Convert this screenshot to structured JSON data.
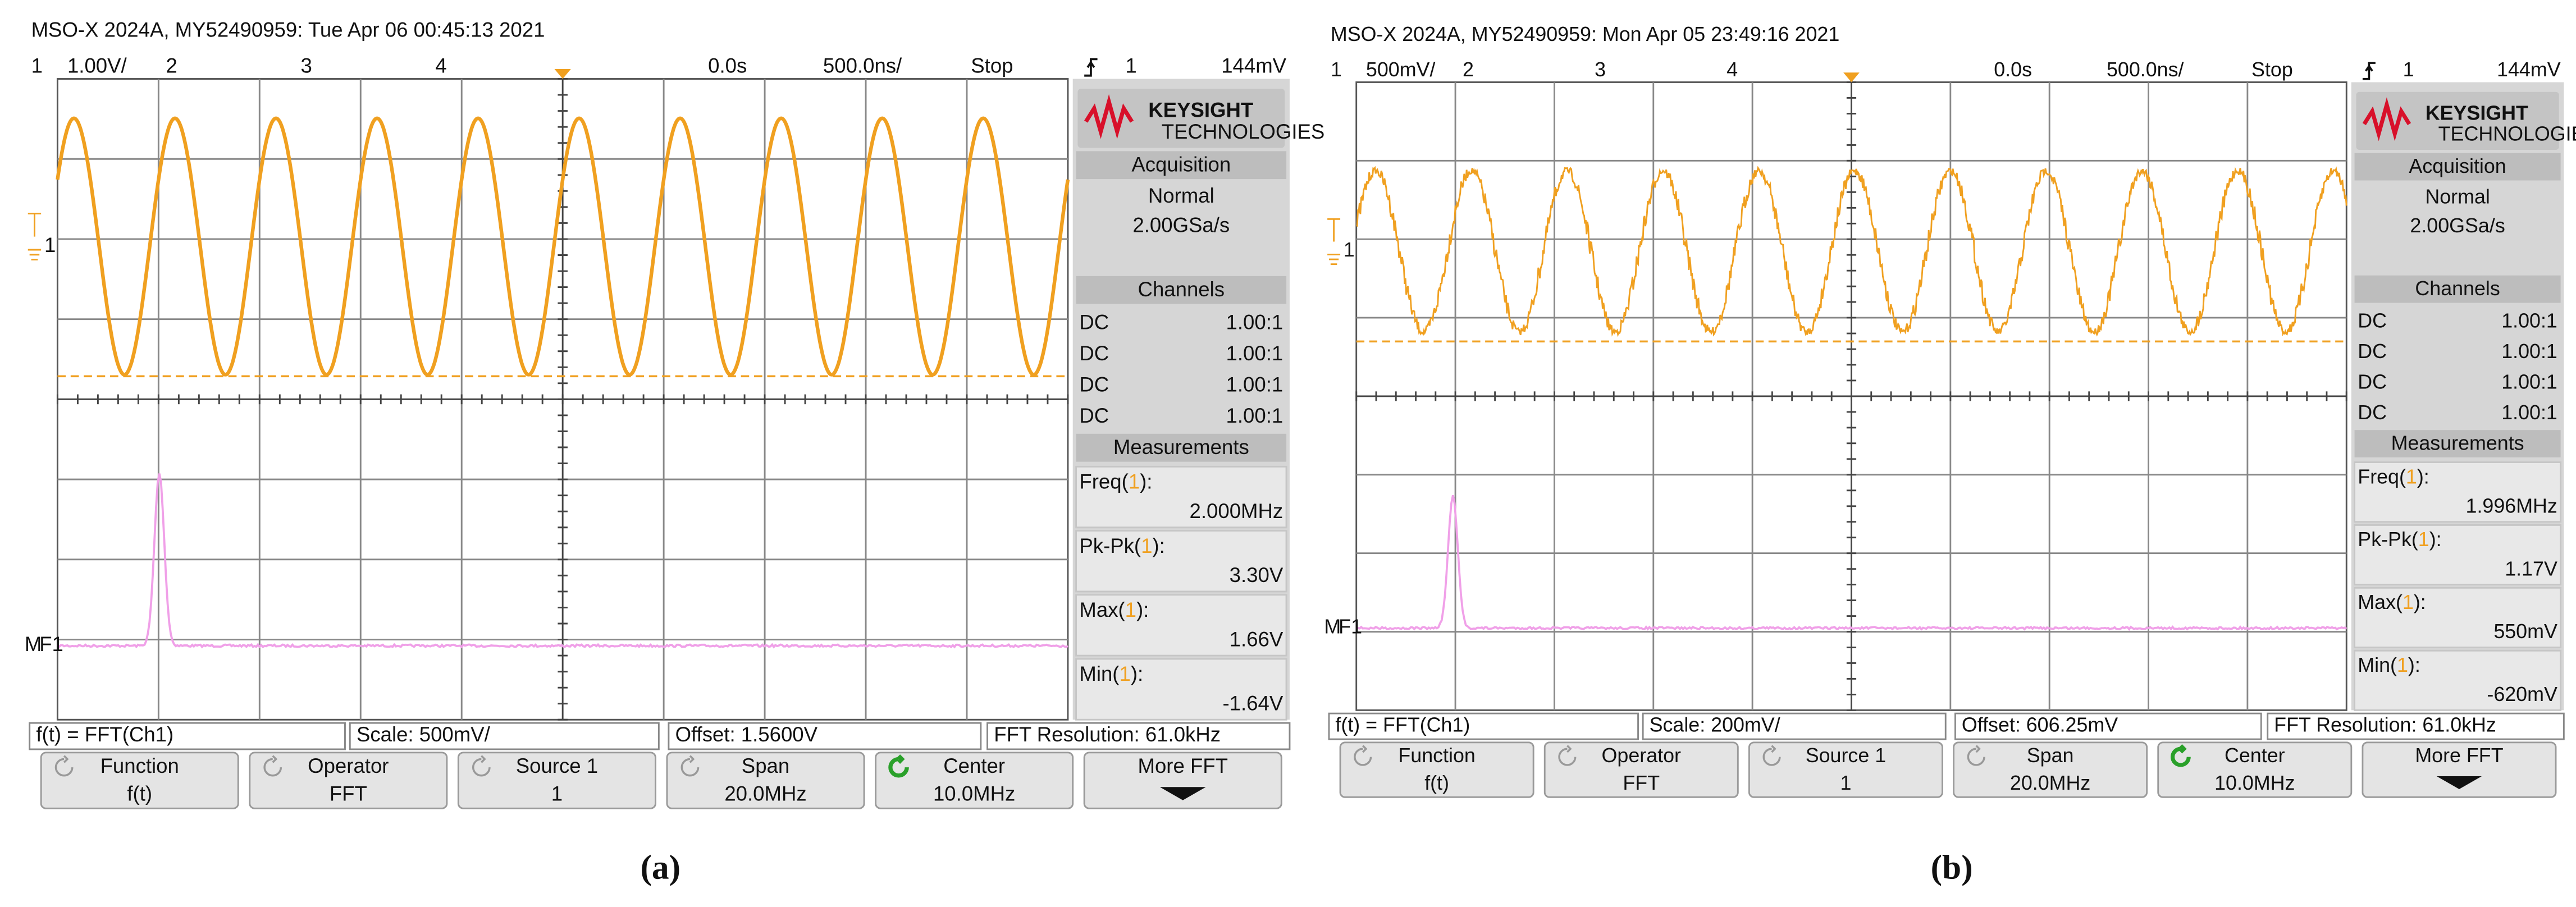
{
  "panels": [
    {
      "header": "MSO-X 2024A, MY52490959: Tue Apr 06 00:45:13 2021",
      "ch1": "1",
      "ch1_scale": "1.00V/",
      "ch2": "2",
      "ch3": "3",
      "ch4": "4",
      "time_offset": "0.0s",
      "time_scale": "500.0ns/",
      "run_status": "Stop",
      "trigger_source": "1",
      "trigger_level": "144mV",
      "ground_marker": "1",
      "math_prefix": "M",
      "math_marker": "F1",
      "brand": {
        "name": "KEYSIGHT",
        "sub": "TECHNOLOGIES"
      },
      "acquisition": {
        "title": "Acquisition",
        "mode": "Normal",
        "rate": "2.00GSa/s"
      },
      "channels": {
        "title": "Channels",
        "rows": [
          {
            "coupling": "DC",
            "probe": "1.00:1"
          },
          {
            "coupling": "DC",
            "probe": "1.00:1"
          },
          {
            "coupling": "DC",
            "probe": "1.00:1"
          },
          {
            "coupling": "DC",
            "probe": "1.00:1"
          }
        ]
      },
      "measurements": {
        "title": "Measurements",
        "items": [
          {
            "label": [
              "Freq(",
              "1",
              "):"
            ],
            "value": "2.000MHz"
          },
          {
            "label": [
              "Pk-Pk(",
              "1",
              "):"
            ],
            "value": "3.30V"
          },
          {
            "label": [
              "Max(",
              "1",
              "):"
            ],
            "value": "1.66V"
          },
          {
            "label": [
              "Min(",
              "1",
              "):"
            ],
            "value": "-1.64V"
          }
        ]
      },
      "math_bar": {
        "function": "f(t) = FFT(Ch1)",
        "scale": "Scale: 500mV/",
        "offset": "Offset: 1.5600V",
        "resolution": "FFT Resolution: 61.0kHz"
      },
      "softkeys": [
        {
          "label": "Function",
          "value": "f(t)"
        },
        {
          "label": "Operator",
          "value": "FFT"
        },
        {
          "label": "Source 1",
          "value": "1"
        },
        {
          "label": "Span",
          "value": "20.0MHz"
        },
        {
          "label": "Center",
          "value": "10.0MHz"
        },
        {
          "label": "More FFT"
        }
      ],
      "caption": "(a)"
    },
    {
      "header": "MSO-X 2024A, MY52490959: Mon Apr 05 23:49:16 2021",
      "ch1": "1",
      "ch1_scale": "500mV/",
      "ch2": "2",
      "ch3": "3",
      "ch4": "4",
      "time_offset": "0.0s",
      "time_scale": "500.0ns/",
      "run_status": "Stop",
      "trigger_source": "1",
      "trigger_level": "144mV",
      "ground_marker": "1",
      "math_prefix": "M",
      "math_marker": "F1",
      "brand": {
        "name": "KEYSIGHT",
        "sub": "TECHNOLOGIES"
      },
      "acquisition": {
        "title": "Acquisition",
        "mode": "Normal",
        "rate": "2.00GSa/s"
      },
      "channels": {
        "title": "Channels",
        "rows": [
          {
            "coupling": "DC",
            "probe": "1.00:1"
          },
          {
            "coupling": "DC",
            "probe": "1.00:1"
          },
          {
            "coupling": "DC",
            "probe": "1.00:1"
          },
          {
            "coupling": "DC",
            "probe": "1.00:1"
          }
        ]
      },
      "measurements": {
        "title": "Measurements",
        "items": [
          {
            "label": [
              "Freq(",
              "1",
              "):"
            ],
            "value": "1.996MHz"
          },
          {
            "label": [
              "Pk-Pk(",
              "1",
              "):"
            ],
            "value": "1.17V"
          },
          {
            "label": [
              "Max(",
              "1",
              "):"
            ],
            "value": "550mV"
          },
          {
            "label": [
              "Min(",
              "1",
              "):"
            ],
            "value": "-620mV"
          }
        ]
      },
      "math_bar": {
        "function": "f(t) = FFT(Ch1)",
        "scale": "Scale: 200mV/",
        "offset": "Offset: 606.25mV",
        "resolution": "FFT Resolution: 61.0kHz"
      },
      "softkeys": [
        {
          "label": "Function",
          "value": "f(t)"
        },
        {
          "label": "Operator",
          "value": "FFT"
        },
        {
          "label": "Source 1",
          "value": "1"
        },
        {
          "label": "Span",
          "value": "20.0MHz"
        },
        {
          "label": "Center",
          "value": "10.0MHz"
        },
        {
          "label": "More FFT"
        }
      ],
      "caption": "(b)"
    }
  ]
}
